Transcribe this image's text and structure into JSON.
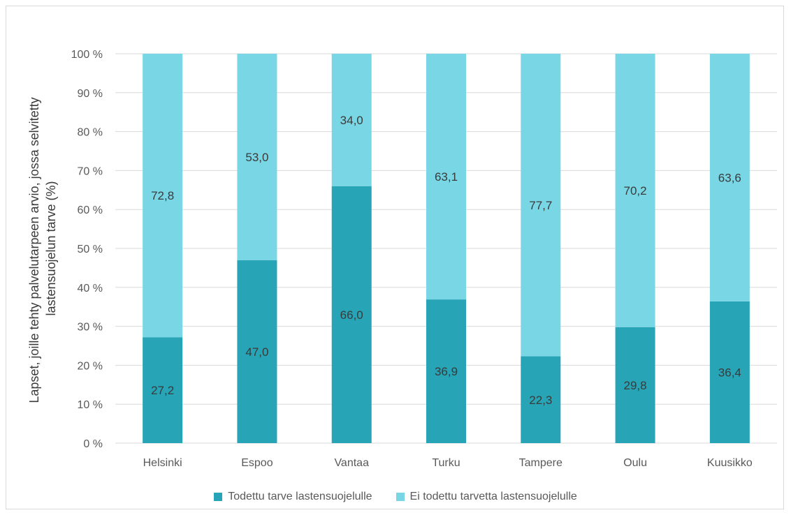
{
  "chart_data": {
    "type": "bar",
    "stacked": true,
    "categories": [
      "Helsinki",
      "Espoo",
      "Vantaa",
      "Turku",
      "Tampere",
      "Oulu",
      "Kuusikko"
    ],
    "series": [
      {
        "name": "Todettu tarve lastensuojelulle",
        "values": [
          27.2,
          47.0,
          66.0,
          36.9,
          22.3,
          29.8,
          36.4
        ],
        "labels": [
          "27,2",
          "47,0",
          "66,0",
          "36,9",
          "22,3",
          "29,8",
          "36,4"
        ],
        "color": "#27a4b6"
      },
      {
        "name": "Ei todettu tarvetta lastensuojelulle",
        "values": [
          72.8,
          53.0,
          34.0,
          63.1,
          77.7,
          70.2,
          63.6
        ],
        "labels": [
          "72,8",
          "53,0",
          "34,0",
          "63,1",
          "77,7",
          "70,2",
          "63,6"
        ],
        "color": "#79d6e4"
      }
    ],
    "ylabel_lines": [
      "Lapset, joille tehty palvelutarpeen arvio, jossa selvitetty",
      "lastensuojelun tarve (%)"
    ],
    "ylim": [
      0,
      100
    ],
    "yticks": [
      "0 %",
      "10 %",
      "20 %",
      "30 %",
      "40 %",
      "50 %",
      "60 %",
      "70 %",
      "80 %",
      "90 %",
      "100 %"
    ],
    "grid": true,
    "legend_position": "bottom"
  }
}
